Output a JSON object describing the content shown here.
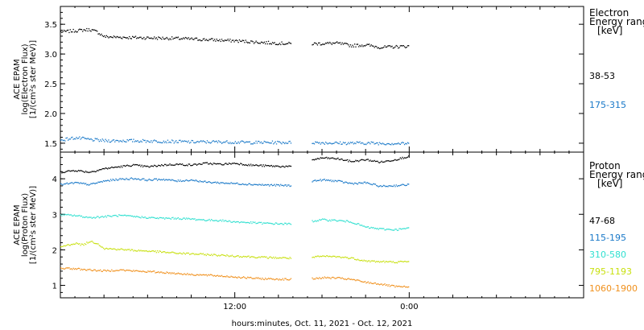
{
  "xlabel": "hours:minutes, Oct. 11, 2021 - Oct. 12, 2021",
  "x_ticks": [
    "12:00",
    "0:00"
  ],
  "chart_data": [
    {
      "type": "scatter",
      "panel": "electron",
      "ylabel_lines": [
        "ACE EPAM",
        "log(Electron Flux)",
        "[1/(cm²s ster MeV)]"
      ],
      "xlim_hours": [
        0,
        36
      ],
      "ylim": [
        1.35,
        3.8
      ],
      "yticks": [
        "1.5",
        "2.0",
        "2.5",
        "3.0",
        "3.5"
      ],
      "ytick_values": [
        1.5,
        2.0,
        2.5,
        3.0,
        3.5
      ],
      "gap_hours": [
        15.9,
        17.3
      ],
      "data_end_hour": 24,
      "legend_title_lines": [
        "Electron",
        "Energy range",
        "[keV]"
      ],
      "series": [
        {
          "name": "38-53",
          "color": "#000000",
          "points": [
            [
              0,
              3.38
            ],
            [
              1,
              3.4
            ],
            [
              2,
              3.42
            ],
            [
              2.5,
              3.38
            ],
            [
              3,
              3.3
            ],
            [
              4,
              3.29
            ],
            [
              6,
              3.28
            ],
            [
              8,
              3.27
            ],
            [
              10,
              3.25
            ],
            [
              12,
              3.23
            ],
            [
              14,
              3.2
            ],
            [
              15.9,
              3.18
            ],
            [
              17.3,
              3.18
            ],
            [
              19,
              3.19
            ],
            [
              20,
              3.15
            ],
            [
              21,
              3.16
            ],
            [
              22,
              3.12
            ],
            [
              23,
              3.13
            ],
            [
              24,
              3.14
            ]
          ]
        },
        {
          "name": "175-315",
          "color": "#1878c8",
          "points": [
            [
              0,
              1.56
            ],
            [
              1,
              1.6
            ],
            [
              2,
              1.57
            ],
            [
              3,
              1.55
            ],
            [
              5,
              1.55
            ],
            [
              7,
              1.54
            ],
            [
              9,
              1.53
            ],
            [
              11,
              1.53
            ],
            [
              13,
              1.52
            ],
            [
              15.9,
              1.52
            ],
            [
              17.3,
              1.52
            ],
            [
              19,
              1.51
            ],
            [
              21,
              1.51
            ],
            [
              24,
              1.5
            ]
          ]
        }
      ]
    },
    {
      "type": "scatter",
      "panel": "proton",
      "ylabel_lines": [
        "ACE EPAM",
        "log(Proton Flux)",
        "[1/(cm²s ster MeV)]"
      ],
      "xlim_hours": [
        0,
        36
      ],
      "ylim": [
        0.65,
        4.75
      ],
      "yticks": [
        "1",
        "2",
        "3",
        "4"
      ],
      "ytick_values": [
        1,
        2,
        3,
        4
      ],
      "gap_hours": [
        15.9,
        17.3
      ],
      "data_end_hour": 24,
      "legend_title_lines": [
        "Proton",
        "Energy range",
        "[keV]"
      ],
      "series": [
        {
          "name": "47-68",
          "color": "#000000",
          "points": [
            [
              0,
              4.2
            ],
            [
              1,
              4.25
            ],
            [
              2,
              4.2
            ],
            [
              3,
              4.3
            ],
            [
              4,
              4.35
            ],
            [
              5,
              4.4
            ],
            [
              6,
              4.35
            ],
            [
              7,
              4.4
            ],
            [
              8,
              4.42
            ],
            [
              9,
              4.4
            ],
            [
              10,
              4.45
            ],
            [
              11,
              4.42
            ],
            [
              12,
              4.45
            ],
            [
              13,
              4.4
            ],
            [
              14,
              4.38
            ],
            [
              15.9,
              4.35
            ],
            [
              17.3,
              4.55
            ],
            [
              18,
              4.6
            ],
            [
              19,
              4.58
            ],
            [
              20,
              4.5
            ],
            [
              21,
              4.55
            ],
            [
              22,
              4.48
            ],
            [
              23,
              4.55
            ],
            [
              24,
              4.65
            ]
          ]
        },
        {
          "name": "115-195",
          "color": "#1878c8",
          "points": [
            [
              0,
              3.85
            ],
            [
              1,
              3.9
            ],
            [
              2,
              3.85
            ],
            [
              3,
              3.95
            ],
            [
              4,
              4.0
            ],
            [
              5,
              4.02
            ],
            [
              6,
              3.98
            ],
            [
              7,
              4.0
            ],
            [
              8,
              3.95
            ],
            [
              9,
              3.98
            ],
            [
              10,
              3.92
            ],
            [
              11,
              3.9
            ],
            [
              12,
              3.88
            ],
            [
              13,
              3.86
            ],
            [
              14,
              3.84
            ],
            [
              15.9,
              3.82
            ],
            [
              17.3,
              3.95
            ],
            [
              18,
              3.98
            ],
            [
              19,
              3.95
            ],
            [
              20,
              3.88
            ],
            [
              21,
              3.9
            ],
            [
              22,
              3.8
            ],
            [
              23,
              3.82
            ],
            [
              24,
              3.85
            ]
          ]
        },
        {
          "name": "310-580",
          "color": "#30e0d0",
          "points": [
            [
              0,
              3.0
            ],
            [
              1,
              2.98
            ],
            [
              2,
              2.92
            ],
            [
              3,
              2.95
            ],
            [
              4,
              2.98
            ],
            [
              5,
              2.95
            ],
            [
              6,
              2.92
            ],
            [
              7,
              2.9
            ],
            [
              8,
              2.9
            ],
            [
              9,
              2.88
            ],
            [
              10,
              2.85
            ],
            [
              11,
              2.84
            ],
            [
              12,
              2.8
            ],
            [
              13,
              2.78
            ],
            [
              14,
              2.76
            ],
            [
              15.9,
              2.74
            ],
            [
              17.3,
              2.82
            ],
            [
              18,
              2.86
            ],
            [
              19,
              2.84
            ],
            [
              20,
              2.8
            ],
            [
              21,
              2.65
            ],
            [
              22,
              2.6
            ],
            [
              23,
              2.58
            ],
            [
              24,
              2.62
            ]
          ]
        },
        {
          "name": "795-1193",
          "color": "#c8e010",
          "points": [
            [
              0,
              2.1
            ],
            [
              1,
              2.2
            ],
            [
              1.5,
              2.15
            ],
            [
              2,
              2.25
            ],
            [
              2.5,
              2.2
            ],
            [
              3,
              2.05
            ],
            [
              4,
              2.03
            ],
            [
              5,
              2.0
            ],
            [
              6,
              1.98
            ],
            [
              7,
              1.95
            ],
            [
              8,
              1.92
            ],
            [
              9,
              1.9
            ],
            [
              10,
              1.88
            ],
            [
              11,
              1.86
            ],
            [
              12,
              1.84
            ],
            [
              13,
              1.82
            ],
            [
              14,
              1.8
            ],
            [
              15.9,
              1.78
            ],
            [
              17.3,
              1.8
            ],
            [
              18,
              1.83
            ],
            [
              19,
              1.82
            ],
            [
              20,
              1.78
            ],
            [
              21,
              1.7
            ],
            [
              22,
              1.68
            ],
            [
              23,
              1.67
            ],
            [
              24,
              1.68
            ]
          ]
        },
        {
          "name": "1060-1900",
          "color": "#f0901c",
          "points": [
            [
              0,
              1.5
            ],
            [
              1,
              1.48
            ],
            [
              2,
              1.45
            ],
            [
              3,
              1.42
            ],
            [
              4,
              1.45
            ],
            [
              5,
              1.42
            ],
            [
              6,
              1.4
            ],
            [
              7,
              1.38
            ],
            [
              8,
              1.35
            ],
            [
              9,
              1.32
            ],
            [
              10,
              1.3
            ],
            [
              11,
              1.28
            ],
            [
              12,
              1.25
            ],
            [
              13,
              1.22
            ],
            [
              14,
              1.2
            ],
            [
              15.9,
              1.18
            ],
            [
              17.3,
              1.2
            ],
            [
              18,
              1.23
            ],
            [
              19,
              1.22
            ],
            [
              20,
              1.18
            ],
            [
              21,
              1.1
            ],
            [
              22,
              1.05
            ],
            [
              23,
              0.98
            ],
            [
              24,
              0.96
            ]
          ]
        }
      ]
    }
  ]
}
